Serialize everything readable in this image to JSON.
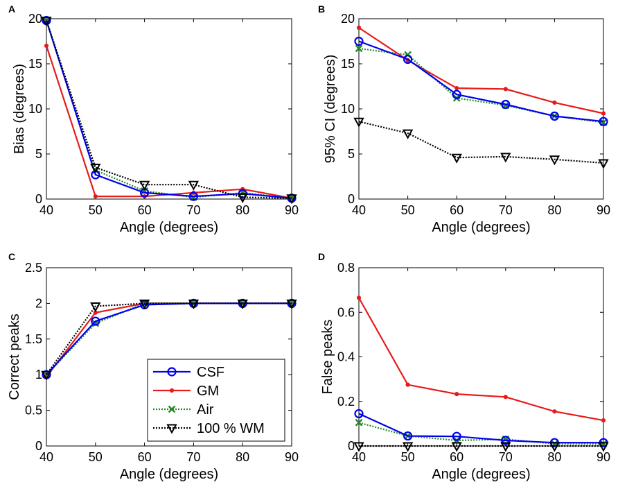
{
  "chart_data": [
    {
      "panel": "A",
      "type": "line",
      "xlabel": "Angle (degrees)",
      "ylabel": "Bias (degrees)",
      "x": [
        40,
        50,
        60,
        70,
        80,
        90
      ],
      "xlim": [
        40,
        90
      ],
      "ylim": [
        0,
        20
      ],
      "xticks": [
        40,
        50,
        60,
        70,
        80,
        90
      ],
      "yticks": [
        0,
        5,
        10,
        15,
        20
      ],
      "grid": false,
      "series": [
        {
          "name": "CSF",
          "values": [
            19.8,
            2.7,
            0.7,
            0.3,
            0.6,
            0.1
          ]
        },
        {
          "name": "GM",
          "values": [
            17.0,
            0.3,
            0.3,
            0.7,
            1.1,
            0.1
          ]
        },
        {
          "name": "Air",
          "values": [
            19.8,
            3.2,
            0.9,
            0.2,
            0.7,
            0.1
          ]
        },
        {
          "name": "100 % WM",
          "values": [
            19.8,
            3.5,
            1.6,
            1.6,
            0.2,
            0.1
          ]
        }
      ]
    },
    {
      "panel": "B",
      "type": "line",
      "xlabel": "Angle (degrees)",
      "ylabel": "95% CI (degrees)",
      "x": [
        40,
        50,
        60,
        70,
        80,
        90
      ],
      "xlim": [
        40,
        90
      ],
      "ylim": [
        0,
        20
      ],
      "xticks": [
        40,
        50,
        60,
        70,
        80,
        90
      ],
      "yticks": [
        0,
        5,
        10,
        15,
        20
      ],
      "grid": false,
      "series": [
        {
          "name": "CSF",
          "values": [
            17.5,
            15.5,
            11.6,
            10.5,
            9.2,
            8.6
          ]
        },
        {
          "name": "GM",
          "values": [
            19.0,
            15.4,
            12.3,
            12.2,
            10.7,
            9.5
          ]
        },
        {
          "name": "Air",
          "values": [
            16.7,
            16.0,
            11.2,
            10.4,
            9.2,
            8.5
          ]
        },
        {
          "name": "100 % WM",
          "values": [
            8.6,
            7.3,
            4.6,
            4.7,
            4.4,
            4.0
          ]
        }
      ]
    },
    {
      "panel": "C",
      "type": "line",
      "xlabel": "Angle (degrees)",
      "ylabel": "Correct peaks",
      "x": [
        40,
        50,
        60,
        70,
        80,
        90
      ],
      "xlim": [
        40,
        90
      ],
      "ylim": [
        0,
        2.5
      ],
      "xticks": [
        40,
        50,
        60,
        70,
        80,
        90
      ],
      "yticks": [
        0,
        0.5,
        1,
        1.5,
        2,
        2.5
      ],
      "ytick_labels": [
        "0",
        "0.5",
        "1",
        "1.5",
        "2",
        "2.5"
      ],
      "grid": false,
      "legend": "lower-right",
      "series": [
        {
          "name": "CSF",
          "values": [
            1.0,
            1.75,
            1.98,
            2.0,
            2.0,
            2.0
          ]
        },
        {
          "name": "GM",
          "values": [
            0.97,
            1.87,
            2.0,
            2.0,
            2.0,
            2.0
          ]
        },
        {
          "name": "Air",
          "values": [
            1.0,
            1.72,
            2.0,
            2.0,
            2.0,
            2.0
          ]
        },
        {
          "name": "100 % WM",
          "values": [
            1.0,
            1.96,
            2.0,
            2.0,
            2.0,
            2.0
          ]
        }
      ]
    },
    {
      "panel": "D",
      "type": "line",
      "xlabel": "Angle (degrees)",
      "ylabel": "False peaks",
      "x": [
        40,
        50,
        60,
        70,
        80,
        90
      ],
      "xlim": [
        40,
        90
      ],
      "ylim": [
        0,
        0.8
      ],
      "xticks": [
        40,
        50,
        60,
        70,
        80,
        90
      ],
      "yticks": [
        0,
        0.2,
        0.4,
        0.6,
        0.8
      ],
      "ytick_labels": [
        "0",
        "0.2",
        "0.4",
        "0.6",
        "0.8"
      ],
      "grid": false,
      "series": [
        {
          "name": "CSF",
          "values": [
            0.145,
            0.045,
            0.043,
            0.025,
            0.015,
            0.015
          ]
        },
        {
          "name": "GM",
          "values": [
            0.665,
            0.275,
            0.233,
            0.22,
            0.155,
            0.115
          ]
        },
        {
          "name": "Air",
          "values": [
            0.105,
            0.045,
            0.025,
            0.03,
            0.01,
            0.01
          ]
        },
        {
          "name": "100 % WM",
          "values": [
            0.0,
            0.0,
            0.0,
            0.0,
            0.0,
            0.0
          ]
        }
      ]
    }
  ],
  "series_styles": {
    "CSF": {
      "color": "#0000ee",
      "marker": "circle",
      "dash": "solid"
    },
    "GM": {
      "color": "#e81a1a",
      "marker": "dot",
      "dash": "solid"
    },
    "Air": {
      "color": "#228b22",
      "marker": "x",
      "dash": "dotted"
    },
    "100 % WM": {
      "color": "#000000",
      "marker": "triangle-down",
      "dash": "dotted"
    }
  },
  "legend": {
    "entries": [
      "CSF",
      "GM",
      "Air",
      "100 % WM"
    ]
  }
}
